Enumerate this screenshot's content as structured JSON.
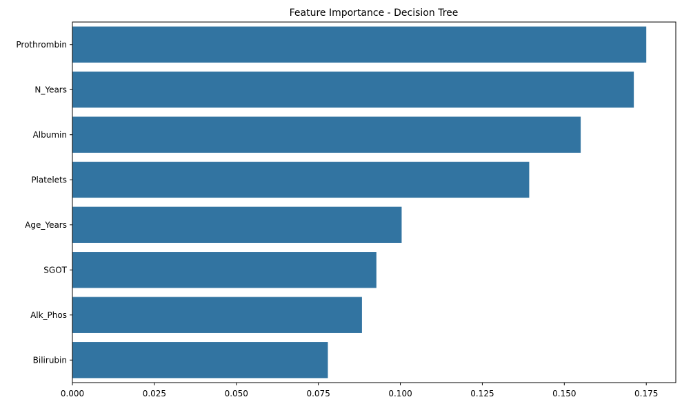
{
  "chart_data": {
    "type": "bar",
    "orientation": "horizontal",
    "title": "Feature Importance - Decision Tree",
    "xlabel": "",
    "ylabel": "",
    "categories": [
      "Prothrombin",
      "N_Years",
      "Albumin",
      "Platelets",
      "Age_Years",
      "SGOT",
      "Alk_Phos",
      "Bilirubin"
    ],
    "values": [
      0.175,
      0.1712,
      0.155,
      0.1393,
      0.1004,
      0.0927,
      0.0883,
      0.0779
    ],
    "xlim": [
      0,
      0.184
    ],
    "xticks": [
      0.0,
      0.025,
      0.05,
      0.075,
      0.1,
      0.125,
      0.15,
      0.175
    ],
    "xtick_labels": [
      "0.000",
      "0.025",
      "0.050",
      "0.075",
      "0.100",
      "0.125",
      "0.150",
      "0.175"
    ],
    "bar_color": "#3274a1",
    "grid": false,
    "legend": false
  }
}
